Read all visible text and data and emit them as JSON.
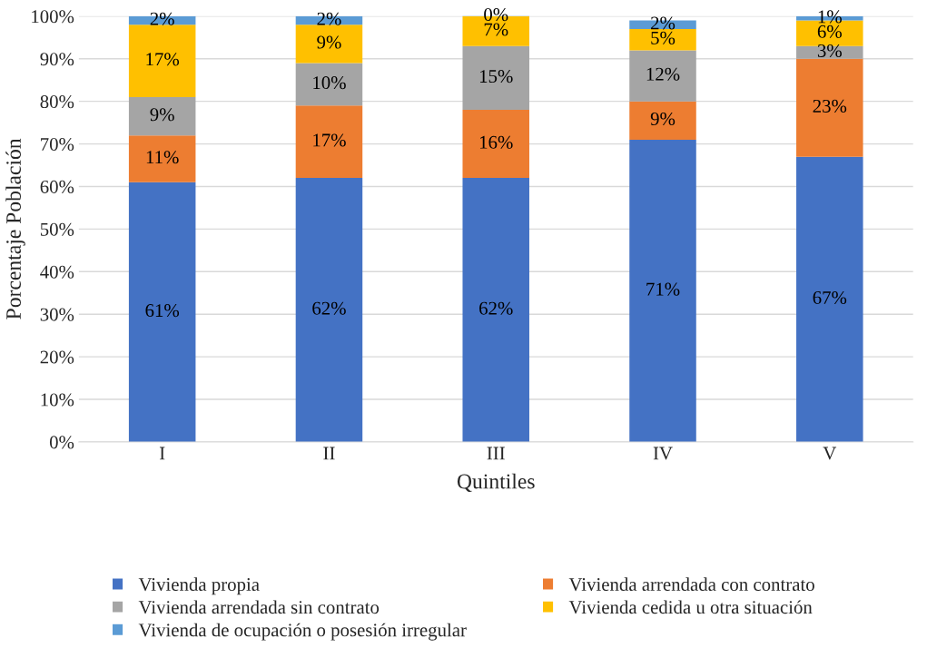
{
  "chart_data": {
    "type": "bar",
    "stacked": true,
    "xlabel": "Quintiles",
    "ylabel": "Porcentaje Población",
    "categories": [
      "I",
      "II",
      "III",
      "IV",
      "V"
    ],
    "series": [
      {
        "name": "Vivienda propia",
        "color": "#4472c4",
        "values": [
          61,
          62,
          62,
          71,
          67
        ],
        "value_labels": [
          "61%",
          "62%",
          "62%",
          "71%",
          "67%"
        ]
      },
      {
        "name": "Vivienda arrendada con contrato",
        "color": "#ed7d31",
        "values": [
          11,
          17,
          16,
          9,
          23
        ],
        "value_labels": [
          "11%",
          "17%",
          "16%",
          "9%",
          "23%"
        ]
      },
      {
        "name": "Vivienda arrendada sin contrato",
        "color": "#a5a5a5",
        "values": [
          9,
          10,
          15,
          12,
          3
        ],
        "value_labels": [
          "9%",
          "10%",
          "15%",
          "12%",
          "3%"
        ]
      },
      {
        "name": "Vivienda cedida u otra situación",
        "color": "#ffc000",
        "values": [
          17,
          9,
          7,
          5,
          6
        ],
        "value_labels": [
          "17%",
          "9%",
          "7%",
          "5%",
          "6%"
        ]
      },
      {
        "name": "Vivienda de ocupación o posesión irregular",
        "color": "#5b9bd5",
        "values": [
          2,
          2,
          0.4,
          2,
          1
        ],
        "value_labels": [
          "2%",
          "2%",
          "0%",
          "2%",
          "1%"
        ]
      }
    ],
    "ylim": [
      0,
      100
    ],
    "yticks": [
      {
        "value": 0,
        "label": "0%"
      },
      {
        "value": 10,
        "label": "10%"
      },
      {
        "value": 20,
        "label": "20%"
      },
      {
        "value": 30,
        "label": "30%"
      },
      {
        "value": 40,
        "label": "40%"
      },
      {
        "value": 50,
        "label": "50%"
      },
      {
        "value": 60,
        "label": "60%"
      },
      {
        "value": 70,
        "label": "70%"
      },
      {
        "value": 80,
        "label": "80%"
      },
      {
        "value": 90,
        "label": "90%"
      },
      {
        "value": 100,
        "label": "100%"
      }
    ],
    "grid": "y",
    "legend": "bottom"
  }
}
